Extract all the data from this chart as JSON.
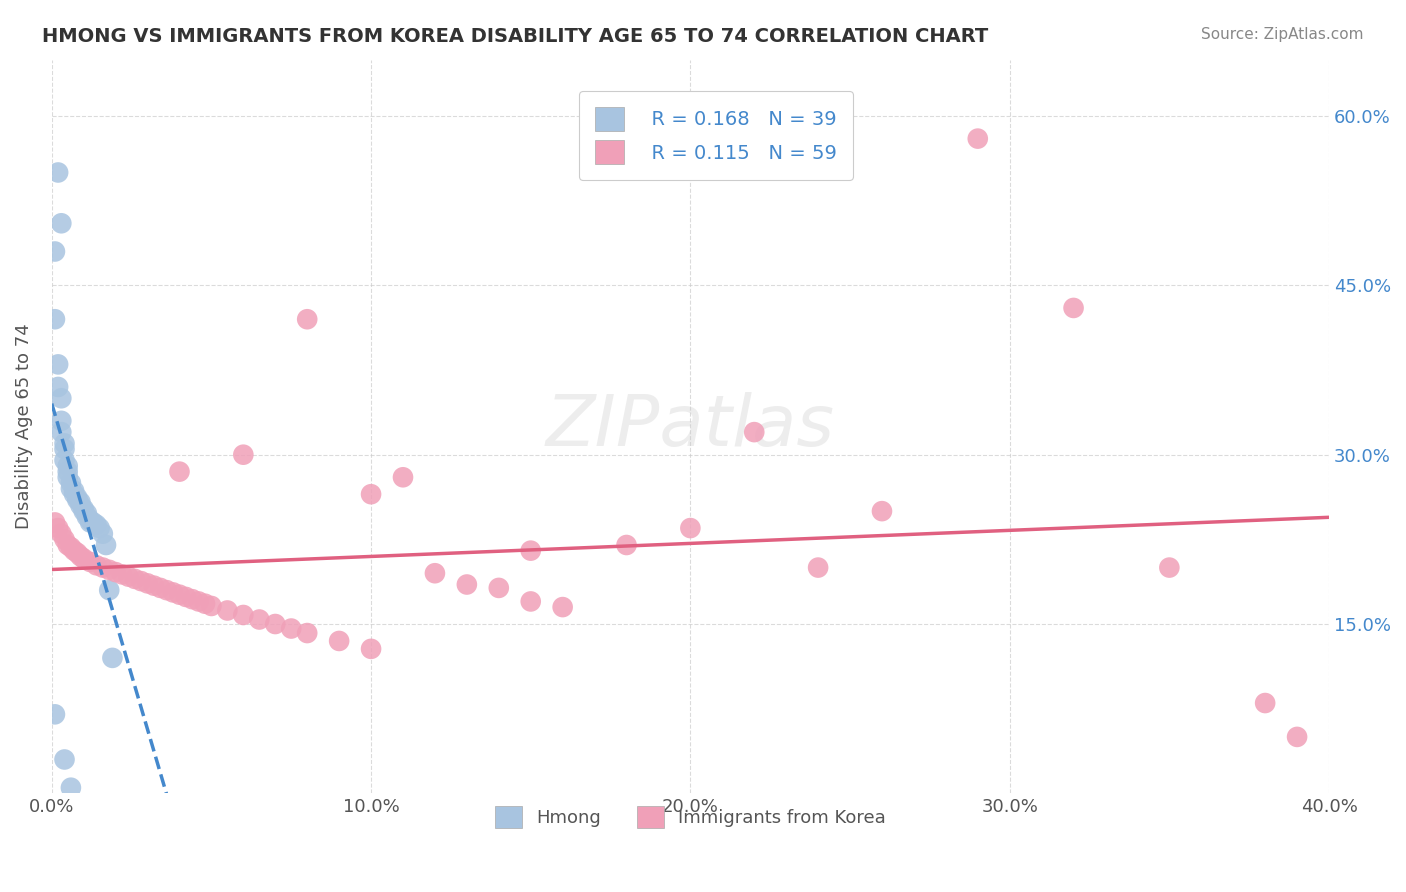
{
  "title": "HMONG VS IMMIGRANTS FROM KOREA DISABILITY AGE 65 TO 74 CORRELATION CHART",
  "source": "Source: ZipAtlas.com",
  "ylabel": "Disability Age 65 to 74",
  "legend_label_1": "Hmong",
  "legend_label_2": "Immigrants from Korea",
  "R1": 0.168,
  "N1": 39,
  "R2": 0.115,
  "N2": 59,
  "xlim": [
    0.0,
    0.4
  ],
  "ylim": [
    0.0,
    0.65
  ],
  "yticks": [
    0.15,
    0.3,
    0.45,
    0.6
  ],
  "ytick_labels": [
    "15.0%",
    "30.0%",
    "45.0%",
    "60.0%"
  ],
  "xticks": [
    0.0,
    0.1,
    0.2,
    0.3,
    0.4
  ],
  "xtick_labels": [
    "0.0%",
    "10.0%",
    "20.0%",
    "30.0%",
    "40.0%"
  ],
  "color_hmong": "#a8c4e0",
  "color_korea": "#f0a0b8",
  "trendline_hmong": "#4488cc",
  "trendline_korea": "#e06080",
  "background_color": "#ffffff",
  "grid_color": "#cccccc",
  "hmong_x": [
    0.001,
    0.001,
    0.002,
    0.002,
    0.003,
    0.003,
    0.003,
    0.004,
    0.004,
    0.004,
    0.005,
    0.005,
    0.005,
    0.006,
    0.006,
    0.007,
    0.007,
    0.008,
    0.008,
    0.009,
    0.009,
    0.01,
    0.01,
    0.011,
    0.011,
    0.012,
    0.012,
    0.013,
    0.014,
    0.015,
    0.016,
    0.017,
    0.018,
    0.019,
    0.002,
    0.003,
    0.001,
    0.004,
    0.006
  ],
  "hmong_y": [
    0.48,
    0.42,
    0.38,
    0.36,
    0.35,
    0.33,
    0.32,
    0.31,
    0.305,
    0.295,
    0.29,
    0.285,
    0.28,
    0.275,
    0.27,
    0.268,
    0.265,
    0.262,
    0.26,
    0.258,
    0.255,
    0.252,
    0.25,
    0.248,
    0.245,
    0.242,
    0.24,
    0.24,
    0.238,
    0.235,
    0.23,
    0.22,
    0.18,
    0.12,
    0.55,
    0.505,
    0.07,
    0.03,
    0.005
  ],
  "korea_x": [
    0.001,
    0.002,
    0.003,
    0.004,
    0.005,
    0.006,
    0.007,
    0.008,
    0.009,
    0.01,
    0.012,
    0.014,
    0.016,
    0.018,
    0.02,
    0.022,
    0.024,
    0.026,
    0.028,
    0.03,
    0.032,
    0.034,
    0.036,
    0.038,
    0.04,
    0.042,
    0.044,
    0.046,
    0.048,
    0.05,
    0.055,
    0.06,
    0.065,
    0.07,
    0.075,
    0.08,
    0.09,
    0.1,
    0.11,
    0.12,
    0.13,
    0.14,
    0.15,
    0.16,
    0.18,
    0.2,
    0.22,
    0.24,
    0.26,
    0.29,
    0.32,
    0.35,
    0.38,
    0.04,
    0.06,
    0.08,
    0.1,
    0.15,
    0.39
  ],
  "korea_y": [
    0.24,
    0.235,
    0.23,
    0.225,
    0.22,
    0.218,
    0.215,
    0.213,
    0.21,
    0.208,
    0.205,
    0.202,
    0.2,
    0.198,
    0.196,
    0.194,
    0.192,
    0.19,
    0.188,
    0.186,
    0.184,
    0.182,
    0.18,
    0.178,
    0.176,
    0.174,
    0.172,
    0.17,
    0.168,
    0.166,
    0.162,
    0.158,
    0.154,
    0.15,
    0.146,
    0.142,
    0.135,
    0.128,
    0.28,
    0.195,
    0.185,
    0.182,
    0.17,
    0.165,
    0.22,
    0.235,
    0.32,
    0.2,
    0.25,
    0.58,
    0.43,
    0.2,
    0.08,
    0.285,
    0.3,
    0.42,
    0.265,
    0.215,
    0.05
  ]
}
